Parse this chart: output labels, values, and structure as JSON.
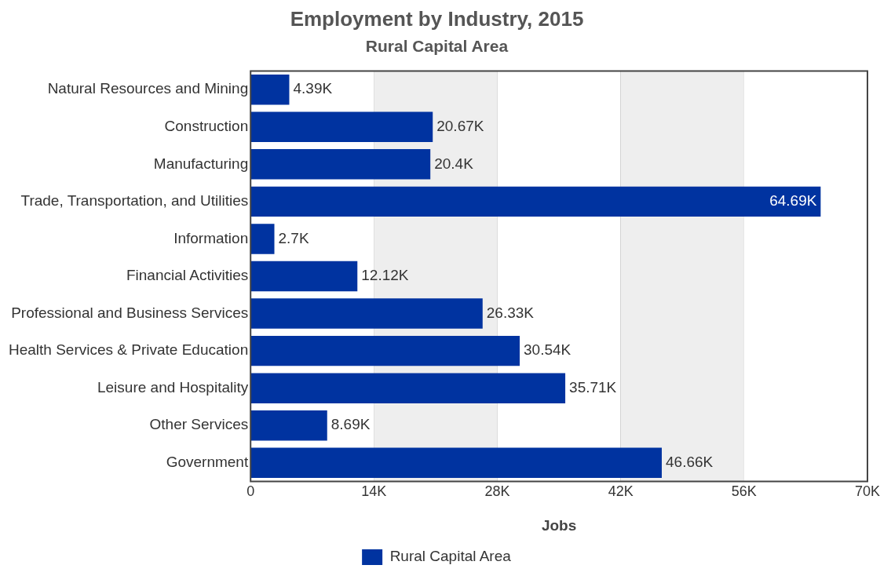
{
  "chart_data": {
    "type": "bar",
    "orientation": "horizontal",
    "title": "Employment by Industry, 2015",
    "subtitle": "Rural Capital Area",
    "xlabel": "Jobs",
    "categories": [
      "Natural Resources and Mining",
      "Construction",
      "Manufacturing",
      "Trade, Transportation, and Utilities",
      "Information",
      "Financial Activities",
      "Professional and Business Services",
      "Health Services & Private Education",
      "Leisure and Hospitality",
      "Other Services",
      "Government"
    ],
    "series": [
      {
        "name": "Rural Capital Area",
        "color": "#0033a0",
        "values": [
          4.39,
          20.67,
          20.4,
          64.69,
          2.7,
          12.12,
          26.33,
          30.54,
          35.71,
          8.69,
          46.66
        ],
        "value_labels": [
          "4.39K",
          "20.67K",
          "20.4K",
          "64.69K",
          "2.7K",
          "12.12K",
          "26.33K",
          "30.54K",
          "35.71K",
          "8.69K",
          "46.66K"
        ]
      }
    ],
    "xlim": [
      0,
      70
    ],
    "xticks": [
      0,
      {
        "value": 14,
        "label": "14K"
      },
      {
        "value": 28,
        "label": "28K"
      },
      {
        "value": 42,
        "label": "42K"
      },
      {
        "value": 56,
        "label": "56K"
      },
      {
        "value": 70,
        "label": "70K"
      }
    ],
    "bands": [
      {
        "axis": "x",
        "from": 14,
        "to": 28,
        "color": "#eeeeee"
      },
      {
        "axis": "x",
        "from": 42,
        "to": 56,
        "color": "#eeeeee"
      }
    ],
    "grid": "x",
    "legend": "bottom"
  }
}
